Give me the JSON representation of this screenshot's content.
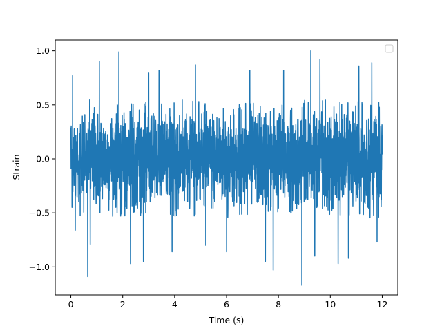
{
  "chart_data": {
    "type": "line",
    "title": "",
    "xlabel": "Time (s)",
    "ylabel": "Strain",
    "xlim": [
      -0.6,
      12.6
    ],
    "ylim": [
      -1.26,
      1.1
    ],
    "xticks": [
      0,
      2,
      4,
      6,
      8,
      10,
      12
    ],
    "xtick_labels": [
      "0",
      "2",
      "4",
      "6",
      "8",
      "10",
      "12"
    ],
    "yticks": [
      -1.0,
      -0.5,
      0.0,
      0.5,
      1.0
    ],
    "ytick_labels": [
      "−1.0",
      "−0.5",
      "0.0",
      "0.5",
      "1.0"
    ],
    "grid": false,
    "legend": {
      "placement": "top-right",
      "entries": []
    },
    "series": [
      {
        "color": "#1f77b4",
        "description_of_signal": "dense noise-like strain time series sampled densely over 0 to 12 s",
        "x_range": [
          0,
          12
        ],
        "typical_envelope": [
          -0.52,
          0.52
        ],
        "extreme_points": [
          {
            "x": 0.0,
            "y": 0.29
          },
          {
            "x": 0.07,
            "y": 0.77
          },
          {
            "x": 0.17,
            "y": -0.66
          },
          {
            "x": 0.65,
            "y": -1.09
          },
          {
            "x": 0.75,
            "y": 0.72
          },
          {
            "x": 0.75,
            "y": -0.79
          },
          {
            "x": 1.1,
            "y": 0.9
          },
          {
            "x": 1.85,
            "y": 0.99
          },
          {
            "x": 2.3,
            "y": -0.97
          },
          {
            "x": 2.8,
            "y": -0.95
          },
          {
            "x": 3.0,
            "y": 0.8
          },
          {
            "x": 3.4,
            "y": 0.82
          },
          {
            "x": 3.9,
            "y": -0.86
          },
          {
            "x": 4.8,
            "y": 0.87
          },
          {
            "x": 5.2,
            "y": -0.8
          },
          {
            "x": 6.0,
            "y": -0.86
          },
          {
            "x": 6.9,
            "y": 0.82
          },
          {
            "x": 7.5,
            "y": -0.95
          },
          {
            "x": 7.8,
            "y": -1.03
          },
          {
            "x": 8.2,
            "y": 0.82
          },
          {
            "x": 8.9,
            "y": -1.17
          },
          {
            "x": 9.25,
            "y": 1.0
          },
          {
            "x": 9.4,
            "y": -0.9
          },
          {
            "x": 9.6,
            "y": 0.92
          },
          {
            "x": 10.3,
            "y": -0.97
          },
          {
            "x": 10.7,
            "y": -0.92
          },
          {
            "x": 11.1,
            "y": 0.86
          },
          {
            "x": 11.6,
            "y": 0.89
          },
          {
            "x": 11.8,
            "y": -0.77
          },
          {
            "x": 12.0,
            "y": 0.22
          }
        ]
      }
    ]
  }
}
